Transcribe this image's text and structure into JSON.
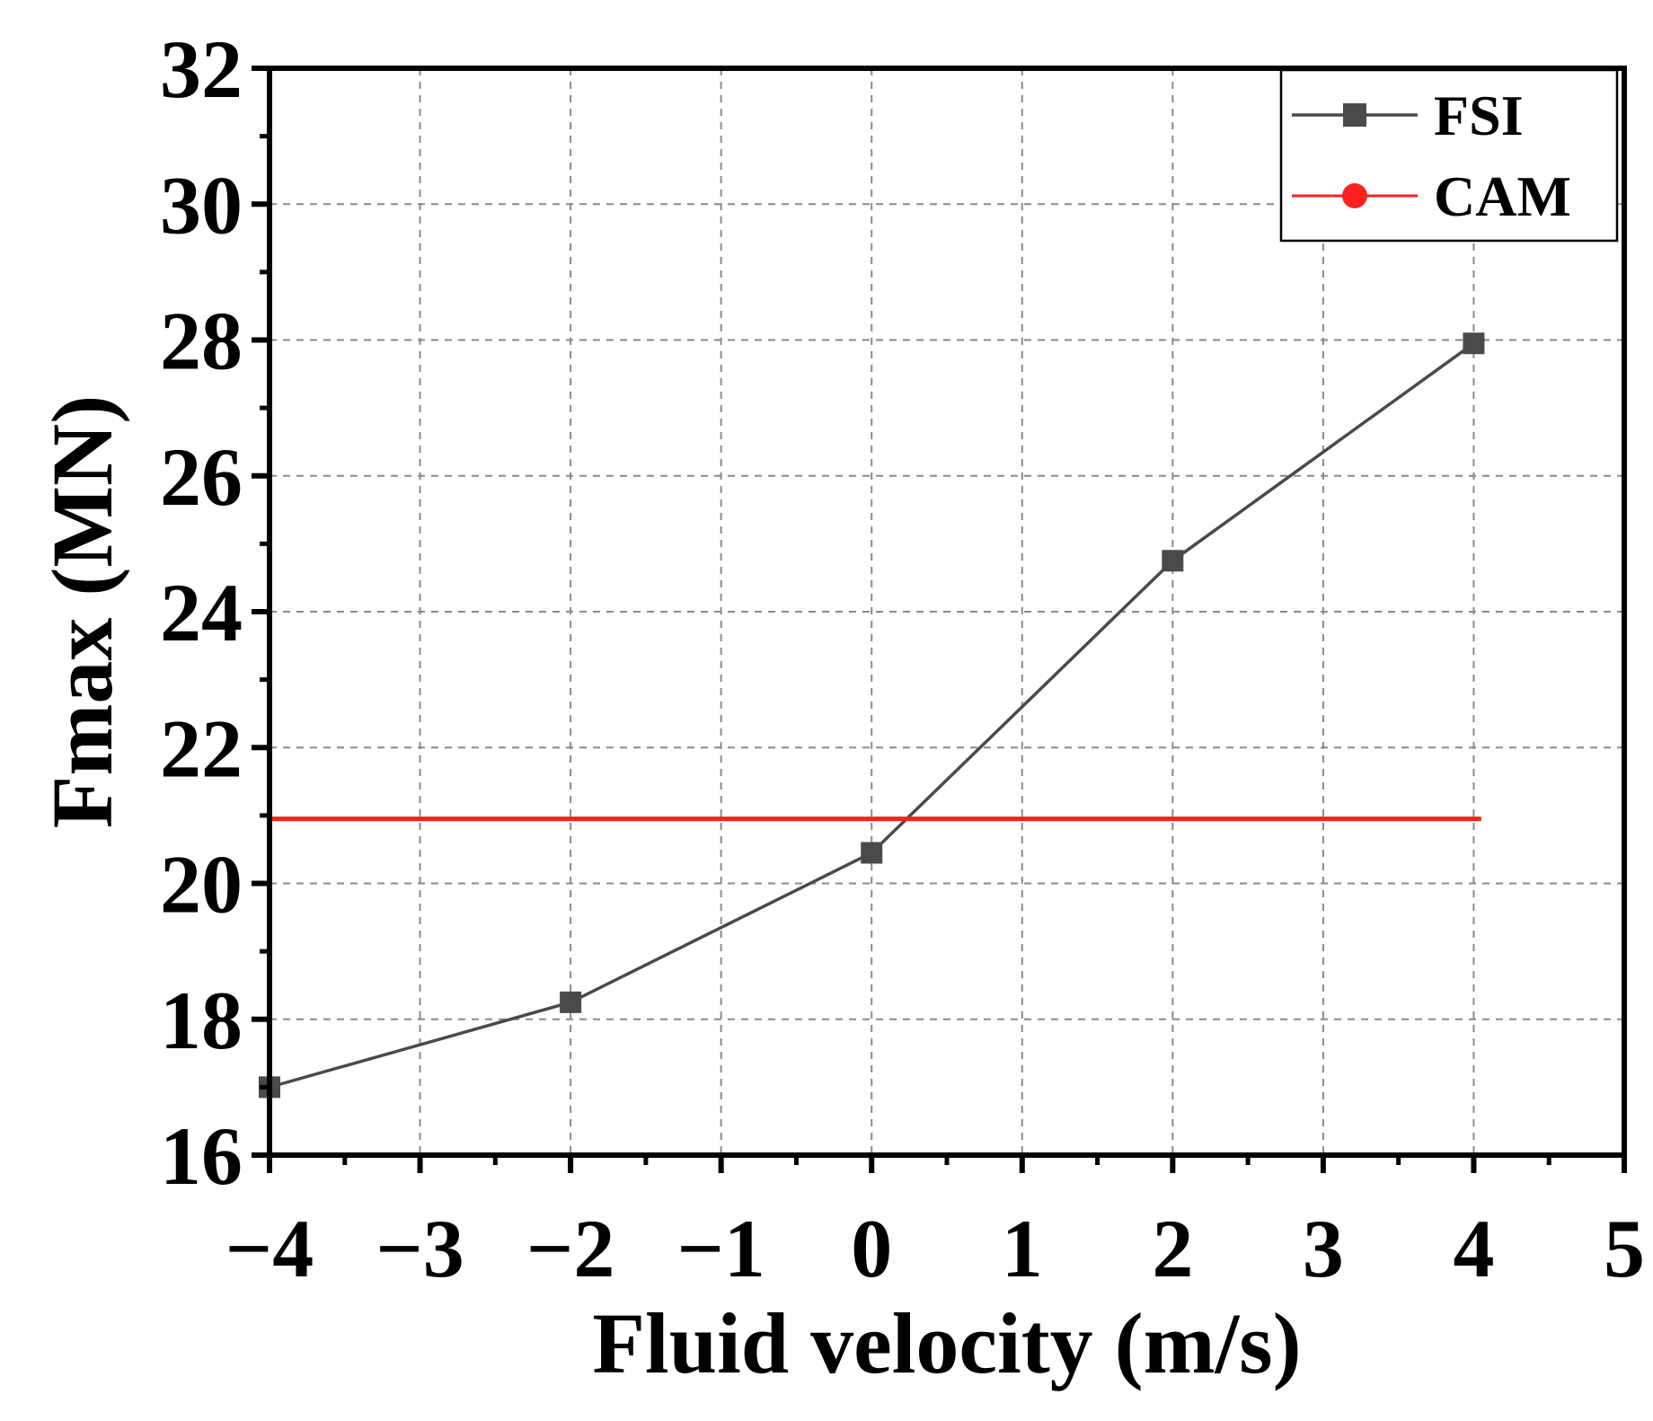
{
  "chart_data": {
    "type": "line",
    "title": "",
    "xlabel": "Fluid velocity (m/s)",
    "ylabel": "Fmax (MN)",
    "xlim": [
      -4,
      5
    ],
    "ylim": [
      16,
      32
    ],
    "xticks": [
      -4,
      -3,
      -2,
      -1,
      0,
      1,
      2,
      3,
      4,
      5
    ],
    "xtick_labels": [
      "−4",
      "−3",
      "−2",
      "−1",
      "0",
      "1",
      "2",
      "3",
      "4",
      "5"
    ],
    "yticks": [
      16,
      18,
      20,
      22,
      24,
      26,
      28,
      30,
      32
    ],
    "ytick_labels": [
      "16",
      "18",
      "20",
      "22",
      "24",
      "26",
      "28",
      "30",
      "32"
    ],
    "grid": true,
    "legend_position": "top-right",
    "series": [
      {
        "name": "FSI",
        "color": "#4a4a4a",
        "marker": "square",
        "x": [
          -4,
          -2,
          0,
          2,
          4
        ],
        "y": [
          17.0,
          18.25,
          20.45,
          24.75,
          27.95
        ]
      },
      {
        "name": "CAM",
        "color": "#ff2020",
        "marker": "circle",
        "x": [
          -4,
          4.05
        ],
        "y": [
          20.95,
          20.95
        ]
      }
    ]
  }
}
